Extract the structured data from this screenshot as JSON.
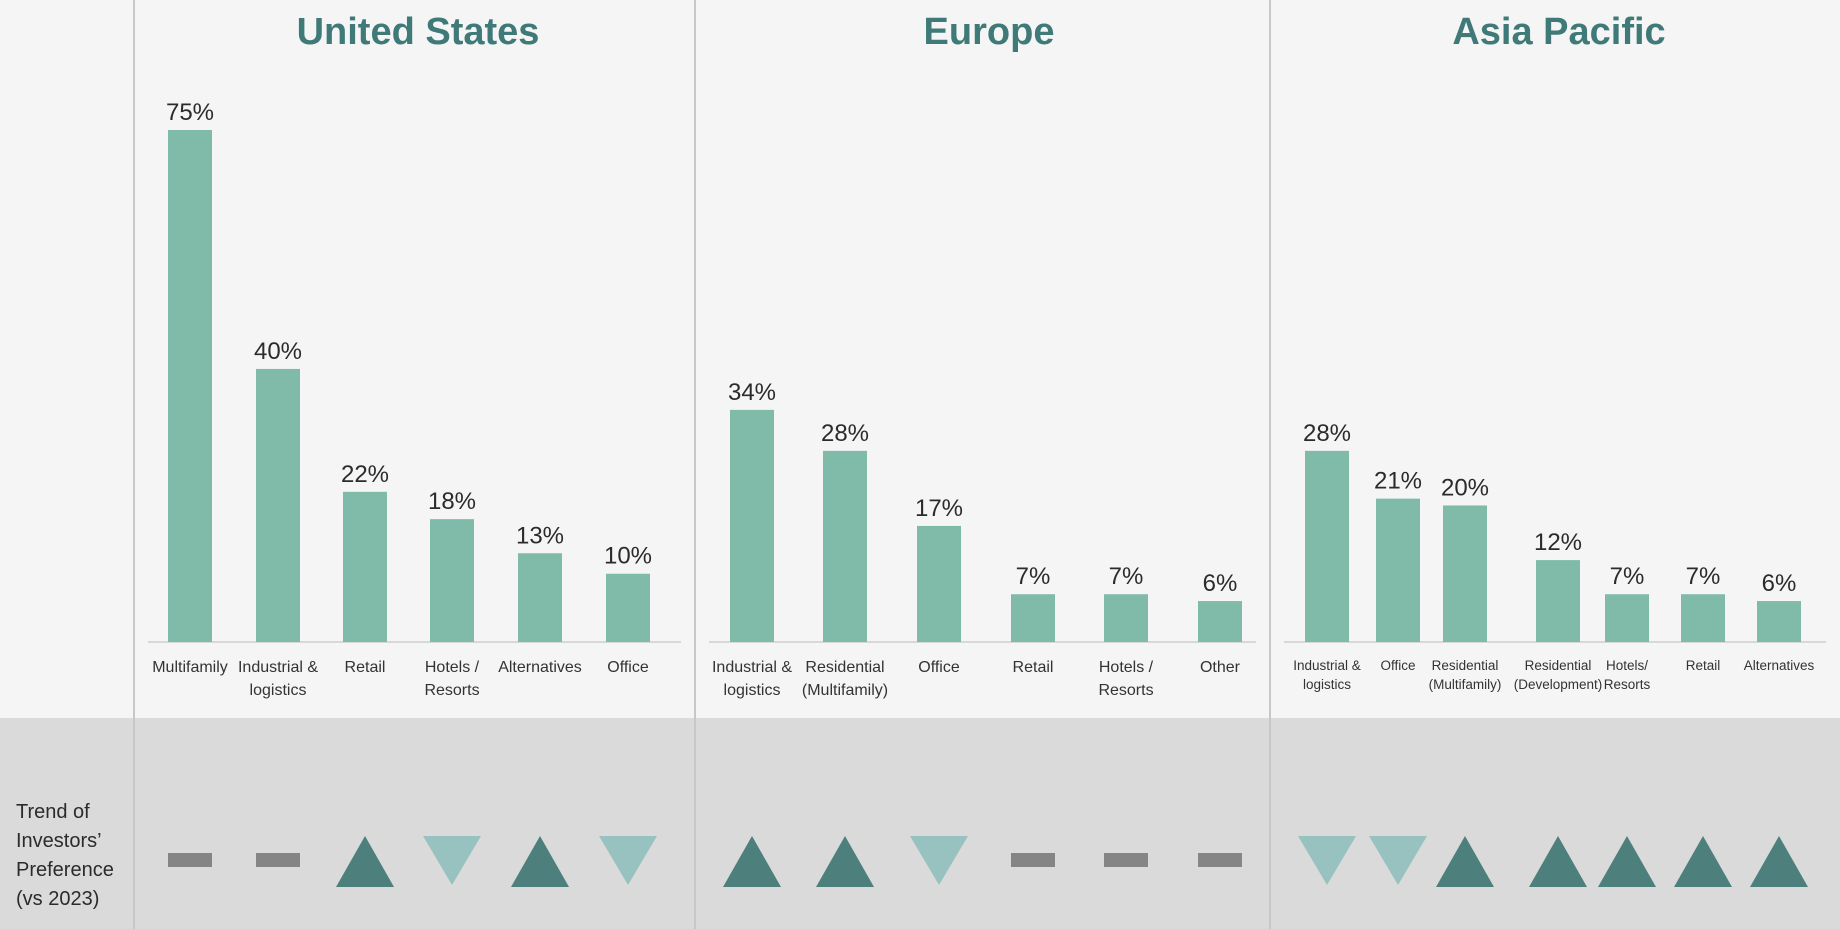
{
  "trend_label": [
    "Trend of",
    "Investors’",
    "Preference",
    "(vs 2023)"
  ],
  "colors": {
    "bar": "#80bbaa",
    "trend_up": "#4d7f7d",
    "trend_down": "#97c2bf",
    "trend_flat": "#858585",
    "title": "#3f7a78",
    "bottom_band": "#dadada",
    "divider": "#c8c8c8"
  },
  "chart_data": [
    {
      "type": "bar",
      "title": "United States",
      "categories": [
        "Multifamily",
        "Industrial & logistics",
        "Retail",
        "Hotels / Resorts",
        "Alternatives",
        "Office"
      ],
      "category_lines": [
        [
          "Multifamily"
        ],
        [
          "Industrial &",
          "logistics"
        ],
        [
          "Retail"
        ],
        [
          "Hotels /",
          "Resorts"
        ],
        [
          "Alternatives"
        ],
        [
          "Office"
        ]
      ],
      "values": [
        75,
        40,
        22,
        18,
        13,
        10
      ],
      "value_labels": [
        "75%",
        "40%",
        "22%",
        "18%",
        "13%",
        "10%"
      ],
      "trend": [
        "flat",
        "flat",
        "up",
        "down",
        "up",
        "down"
      ]
    },
    {
      "type": "bar",
      "title": "Europe",
      "categories": [
        "Industrial & logistics",
        "Residential (Multifamily)",
        "Office",
        "Retail",
        "Hotels / Resorts",
        "Other"
      ],
      "category_lines": [
        [
          "Industrial &",
          "logistics"
        ],
        [
          "Residential",
          "(Multifamily)"
        ],
        [
          "Office"
        ],
        [
          "Retail"
        ],
        [
          "Hotels /",
          "Resorts"
        ],
        [
          "Other"
        ]
      ],
      "values": [
        34,
        28,
        17,
        7,
        7,
        6
      ],
      "value_labels": [
        "34%",
        "28%",
        "17%",
        "7%",
        "7%",
        "6%"
      ],
      "trend": [
        "up",
        "up",
        "down",
        "flat",
        "flat",
        "flat"
      ]
    },
    {
      "type": "bar",
      "title": "Asia Pacific",
      "categories": [
        "Industrial & logistics",
        "Office",
        "Residential (Multifamily)",
        "Residential (Development)",
        "Hotels/ Resorts",
        "Retail",
        "Alternatives"
      ],
      "category_lines": [
        [
          "Industrial &",
          "logistics"
        ],
        [
          "Office"
        ],
        [
          "Residential",
          "(Multifamily)"
        ],
        [
          "Residential",
          "(Development)"
        ],
        [
          "Hotels/",
          "Resorts"
        ],
        [
          "Retail"
        ],
        [
          "Alternatives"
        ]
      ],
      "values": [
        28,
        21,
        20,
        12,
        7,
        7,
        6
      ],
      "value_labels": [
        "28%",
        "21%",
        "20%",
        "12%",
        "7%",
        "7%",
        "6%"
      ],
      "trend": [
        "down",
        "down",
        "up",
        "up",
        "up",
        "up",
        "up"
      ]
    }
  ]
}
